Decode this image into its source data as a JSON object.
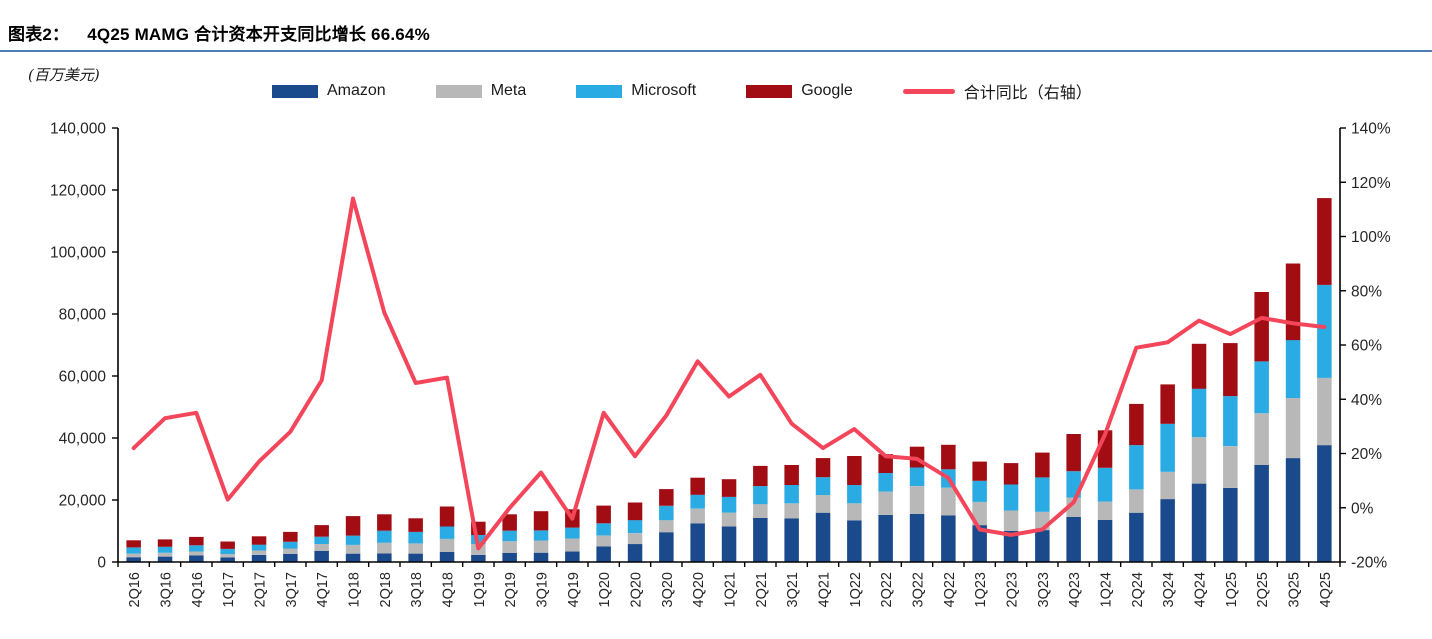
{
  "header": {
    "figure_label": "图表2：",
    "title": "4Q25 MAMG 合计资本开支同比增长 66.64%"
  },
  "unit_label": "(百万美元)",
  "colors": {
    "amazon": "#1A4A8C",
    "meta": "#B8B8B8",
    "microsoft": "#2AABE4",
    "google": "#A20D14",
    "yoy_line": "#F4465A",
    "title_rule": "#4E7DB5",
    "axis": "#000000",
    "tick_text": "#262626"
  },
  "chart_data": {
    "type": "combo-stacked-bar-line",
    "title": "4Q25 MAMG 合计资本开支同比增长 66.64%",
    "unit": "百万美元",
    "legend_position": "top",
    "grid": false,
    "categories": [
      "2Q16",
      "3Q16",
      "4Q16",
      "1Q17",
      "2Q17",
      "3Q17",
      "4Q17",
      "1Q18",
      "2Q18",
      "3Q18",
      "4Q18",
      "1Q19",
      "2Q19",
      "3Q19",
      "4Q19",
      "1Q20",
      "2Q20",
      "3Q20",
      "4Q20",
      "1Q21",
      "2Q21",
      "3Q21",
      "4Q21",
      "1Q22",
      "2Q22",
      "3Q22",
      "4Q22",
      "1Q23",
      "2Q23",
      "3Q23",
      "4Q23",
      "1Q24",
      "2Q24",
      "3Q24",
      "4Q24",
      "1Q25",
      "2Q25",
      "3Q25",
      "4Q25"
    ],
    "left_axis": {
      "min": 0,
      "max": 140000,
      "step": 20000
    },
    "right_axis": {
      "min": -20,
      "max": 140,
      "step": 20,
      "suffix": "%"
    },
    "series": [
      {
        "name": "Amazon",
        "type": "bar",
        "stack": true,
        "color_key": "amazon",
        "values": [
          1550,
          1750,
          2100,
          1450,
          2300,
          2650,
          3550,
          2700,
          2750,
          2700,
          3300,
          2300,
          2900,
          3000,
          3400,
          5000,
          5800,
          9600,
          12500,
          11500,
          14200,
          14100,
          15900,
          13400,
          15200,
          15500,
          15000,
          11900,
          10000,
          10300,
          14500,
          13600,
          15900,
          20300,
          25300,
          23900,
          31300,
          33500,
          37700
        ]
      },
      {
        "name": "Meta",
        "type": "bar",
        "stack": true,
        "color_key": "meta",
        "values": [
          1150,
          1200,
          1300,
          1100,
          1400,
          1700,
          2250,
          2800,
          3450,
          3300,
          4150,
          3500,
          3800,
          3900,
          4200,
          3600,
          3500,
          3900,
          4700,
          4450,
          4500,
          4850,
          5700,
          5550,
          7500,
          9000,
          9000,
          7500,
          6600,
          5900,
          6300,
          5900,
          7500,
          8800,
          15000,
          13500,
          16700,
          19400,
          21700
        ]
      },
      {
        "name": "Microsoft",
        "type": "bar",
        "stack": true,
        "color_key": "microsoft",
        "values": [
          2000,
          1950,
          2000,
          1650,
          1900,
          2150,
          2350,
          3000,
          3900,
          3700,
          4000,
          2900,
          3400,
          3300,
          3500,
          3900,
          4200,
          4600,
          4500,
          5050,
          5800,
          5900,
          5750,
          5900,
          6000,
          6000,
          5900,
          6800,
          8400,
          11100,
          8500,
          10900,
          14300,
          15500,
          15600,
          16100,
          16700,
          18700,
          30000
        ]
      },
      {
        "name": "Google",
        "type": "bar",
        "stack": true,
        "color_key": "google",
        "values": [
          2300,
          2400,
          2700,
          2400,
          2700,
          3200,
          3750,
          6300,
          5300,
          4400,
          6450,
          4300,
          5300,
          6200,
          5900,
          5700,
          5700,
          5400,
          5500,
          5700,
          6500,
          6450,
          6150,
          9350,
          6100,
          6700,
          7900,
          6200,
          6900,
          8000,
          12000,
          12100,
          13300,
          12700,
          14500,
          17100,
          22400,
          24700,
          28000
        ]
      },
      {
        "name": "合计同比（右轴）",
        "type": "line",
        "axis": "right",
        "color_key": "yoy_line",
        "values": [
          22,
          33,
          35,
          3,
          17,
          28,
          47,
          114,
          72,
          46,
          48,
          -15,
          0,
          13,
          -4,
          35,
          19,
          34,
          54,
          41,
          49,
          31,
          22,
          29,
          19,
          18,
          11,
          -8,
          -10,
          -8,
          2,
          27,
          59,
          61,
          69,
          64,
          70,
          68,
          66.64
        ]
      }
    ]
  }
}
